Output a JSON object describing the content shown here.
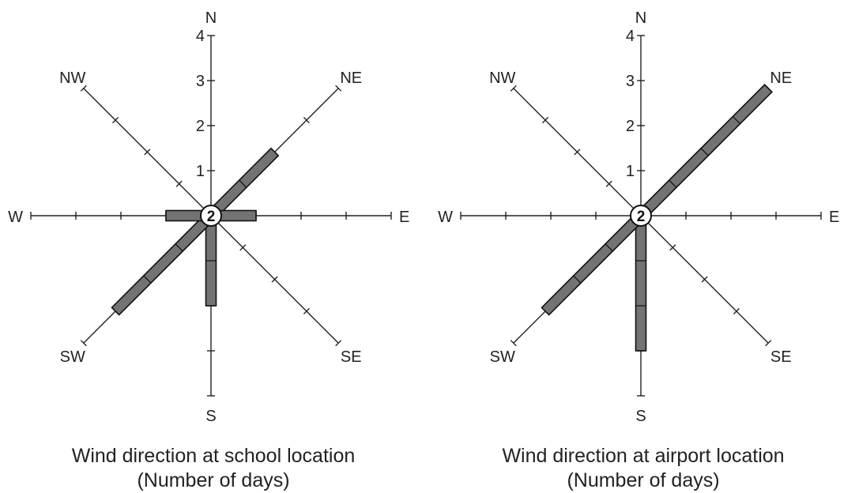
{
  "chart_data": [
    {
      "type": "wind-rose",
      "title": "Wind direction at school location",
      "subtitle": "(Number of days)",
      "directions": [
        "N",
        "NE",
        "E",
        "SE",
        "S",
        "SW",
        "W",
        "NW"
      ],
      "values": {
        "N": 0,
        "NE": 2,
        "E": 1,
        "SE": 0,
        "S": 2,
        "SW": 3,
        "W": 1,
        "NW": 0
      },
      "center_value": "2",
      "axis_ticks": [
        "1",
        "2",
        "3",
        "4"
      ],
      "axis_max": 4
    },
    {
      "type": "wind-rose",
      "title": "Wind direction at airport location",
      "subtitle": "(Number of days)",
      "directions": [
        "N",
        "NE",
        "E",
        "SE",
        "S",
        "SW",
        "W",
        "NW"
      ],
      "values": {
        "N": 0,
        "NE": 4,
        "E": 0,
        "SE": 0,
        "S": 3,
        "SW": 3,
        "W": 0,
        "NW": 0
      },
      "center_value": "2",
      "axis_ticks": [
        "1",
        "2",
        "3",
        "4"
      ],
      "axis_max": 4
    }
  ]
}
